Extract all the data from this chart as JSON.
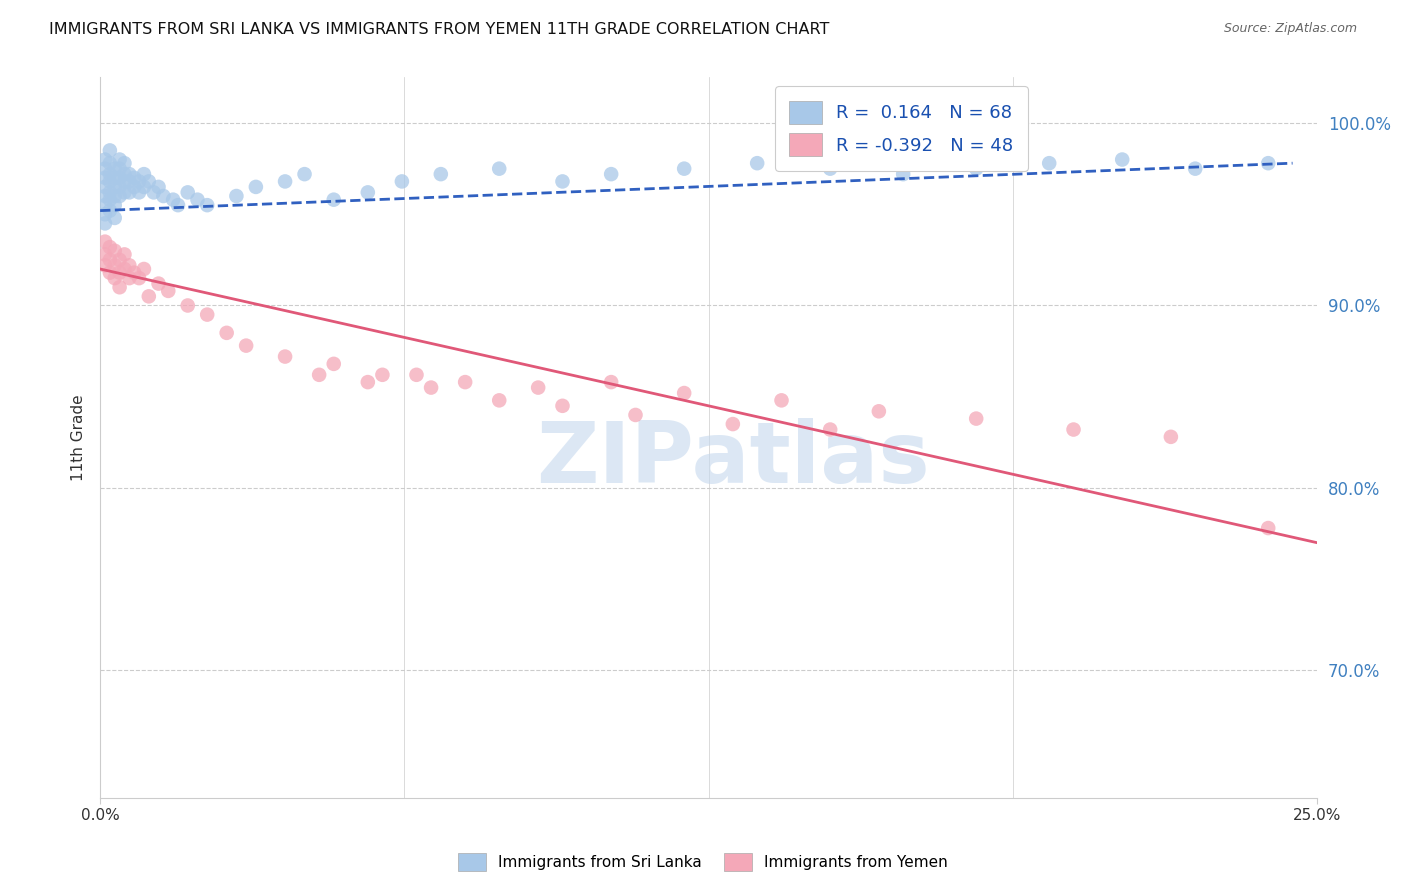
{
  "title": "IMMIGRANTS FROM SRI LANKA VS IMMIGRANTS FROM YEMEN 11TH GRADE CORRELATION CHART",
  "source": "Source: ZipAtlas.com",
  "ylabel": "11th Grade",
  "xmin": 0.0,
  "xmax": 0.25,
  "ymin": 0.63,
  "ymax": 1.025,
  "legend_R1": "0.164",
  "legend_N1": "68",
  "legend_R2": "-0.392",
  "legend_N2": "48",
  "color_sri_lanka": "#a8c8e8",
  "color_yemen": "#f4a8b8",
  "trendline_sri_lanka_color": "#3060c0",
  "trendline_sri_lanka_style": "--",
  "trendline_yemen_color": "#e05878",
  "trendline_yemen_style": "-",
  "ytick_positions": [
    0.7,
    0.8,
    0.9,
    1.0
  ],
  "ytick_labels": [
    "70.0%",
    "80.0%",
    "90.0%",
    "100.0%"
  ],
  "xtick_positions": [
    0.0,
    0.25
  ],
  "xtick_labels": [
    "0.0%",
    "25.0%"
  ],
  "watermark_text": "ZIPatlas",
  "sri_lanka_x": [
    0.001,
    0.001,
    0.001,
    0.001,
    0.001,
    0.001,
    0.001,
    0.001,
    0.002,
    0.002,
    0.002,
    0.002,
    0.002,
    0.002,
    0.002,
    0.003,
    0.003,
    0.003,
    0.003,
    0.003,
    0.003,
    0.004,
    0.004,
    0.004,
    0.004,
    0.004,
    0.005,
    0.005,
    0.005,
    0.005,
    0.006,
    0.006,
    0.006,
    0.007,
    0.007,
    0.008,
    0.008,
    0.009,
    0.009,
    0.01,
    0.011,
    0.012,
    0.013,
    0.015,
    0.016,
    0.018,
    0.02,
    0.022,
    0.028,
    0.032,
    0.038,
    0.042,
    0.048,
    0.055,
    0.062,
    0.07,
    0.082,
    0.095,
    0.105,
    0.12,
    0.135,
    0.15,
    0.165,
    0.18,
    0.195,
    0.21,
    0.225,
    0.24
  ],
  "sri_lanka_y": [
    0.98,
    0.975,
    0.97,
    0.965,
    0.96,
    0.955,
    0.95,
    0.945,
    0.985,
    0.978,
    0.972,
    0.968,
    0.962,
    0.958,
    0.952,
    0.975,
    0.97,
    0.965,
    0.96,
    0.955,
    0.948,
    0.98,
    0.975,
    0.97,
    0.965,
    0.96,
    0.978,
    0.972,
    0.968,
    0.962,
    0.972,
    0.968,
    0.962,
    0.97,
    0.965,
    0.968,
    0.962,
    0.972,
    0.965,
    0.968,
    0.962,
    0.965,
    0.96,
    0.958,
    0.955,
    0.962,
    0.958,
    0.955,
    0.96,
    0.965,
    0.968,
    0.972,
    0.958,
    0.962,
    0.968,
    0.972,
    0.975,
    0.968,
    0.972,
    0.975,
    0.978,
    0.975,
    0.972,
    0.975,
    0.978,
    0.98,
    0.975,
    0.978
  ],
  "yemen_x": [
    0.001,
    0.001,
    0.001,
    0.002,
    0.002,
    0.002,
    0.003,
    0.003,
    0.003,
    0.004,
    0.004,
    0.004,
    0.005,
    0.005,
    0.006,
    0.006,
    0.007,
    0.008,
    0.009,
    0.01,
    0.012,
    0.014,
    0.018,
    0.022,
    0.026,
    0.03,
    0.038,
    0.045,
    0.055,
    0.065,
    0.075,
    0.09,
    0.105,
    0.12,
    0.14,
    0.16,
    0.18,
    0.2,
    0.22,
    0.24,
    0.048,
    0.058,
    0.068,
    0.082,
    0.095,
    0.11,
    0.13,
    0.15
  ],
  "yemen_y": [
    0.935,
    0.928,
    0.922,
    0.932,
    0.925,
    0.918,
    0.93,
    0.922,
    0.915,
    0.925,
    0.918,
    0.91,
    0.928,
    0.92,
    0.922,
    0.915,
    0.918,
    0.915,
    0.92,
    0.905,
    0.912,
    0.908,
    0.9,
    0.895,
    0.885,
    0.878,
    0.872,
    0.862,
    0.858,
    0.862,
    0.858,
    0.855,
    0.858,
    0.852,
    0.848,
    0.842,
    0.838,
    0.832,
    0.828,
    0.778,
    0.868,
    0.862,
    0.855,
    0.848,
    0.845,
    0.84,
    0.835,
    0.832
  ],
  "trendline_sl_x0": 0.0,
  "trendline_sl_y0": 0.952,
  "trendline_sl_x1": 0.245,
  "trendline_sl_y1": 0.978,
  "trendline_ye_x0": 0.0,
  "trendline_ye_y0": 0.92,
  "trendline_ye_x1": 0.25,
  "trendline_ye_y1": 0.77
}
